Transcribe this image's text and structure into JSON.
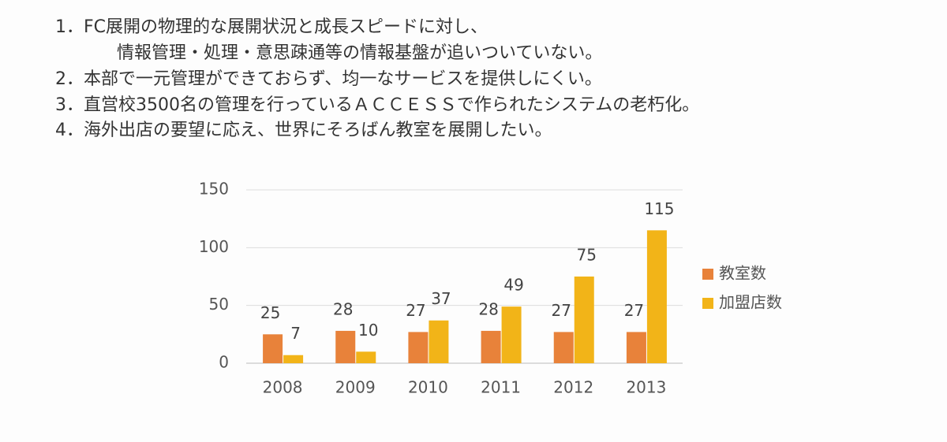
{
  "lines": [
    "1．FC展開の物理的な展開状況と成長スピードに対し、",
    "情報管理・処理・意思疎通等の情報基盤が追いついていない。",
    "2．本部で一元管理ができておらず、均一なサービスを提供しにくい。",
    "3．直営校3500名の管理を行っているＡＣＣＥＳＳで作られたシステムの老朽化。",
    "4．海外出店の要望に応え、世界にそろばん教室を展開したい。"
  ],
  "chart_data": {
    "type": "bar",
    "categories": [
      "2008",
      "2009",
      "2010",
      "2011",
      "2012",
      "2013"
    ],
    "series": [
      {
        "name": "教室数",
        "color": "#e8823a",
        "values": [
          25,
          28,
          27,
          28,
          27,
          27
        ]
      },
      {
        "name": "加盟店数",
        "color": "#f2b418",
        "values": [
          7,
          10,
          37,
          49,
          75,
          115
        ]
      }
    ],
    "ylim": [
      0,
      150
    ],
    "yticks": [
      0,
      50,
      100,
      150
    ],
    "grid": true,
    "legend": "right"
  }
}
